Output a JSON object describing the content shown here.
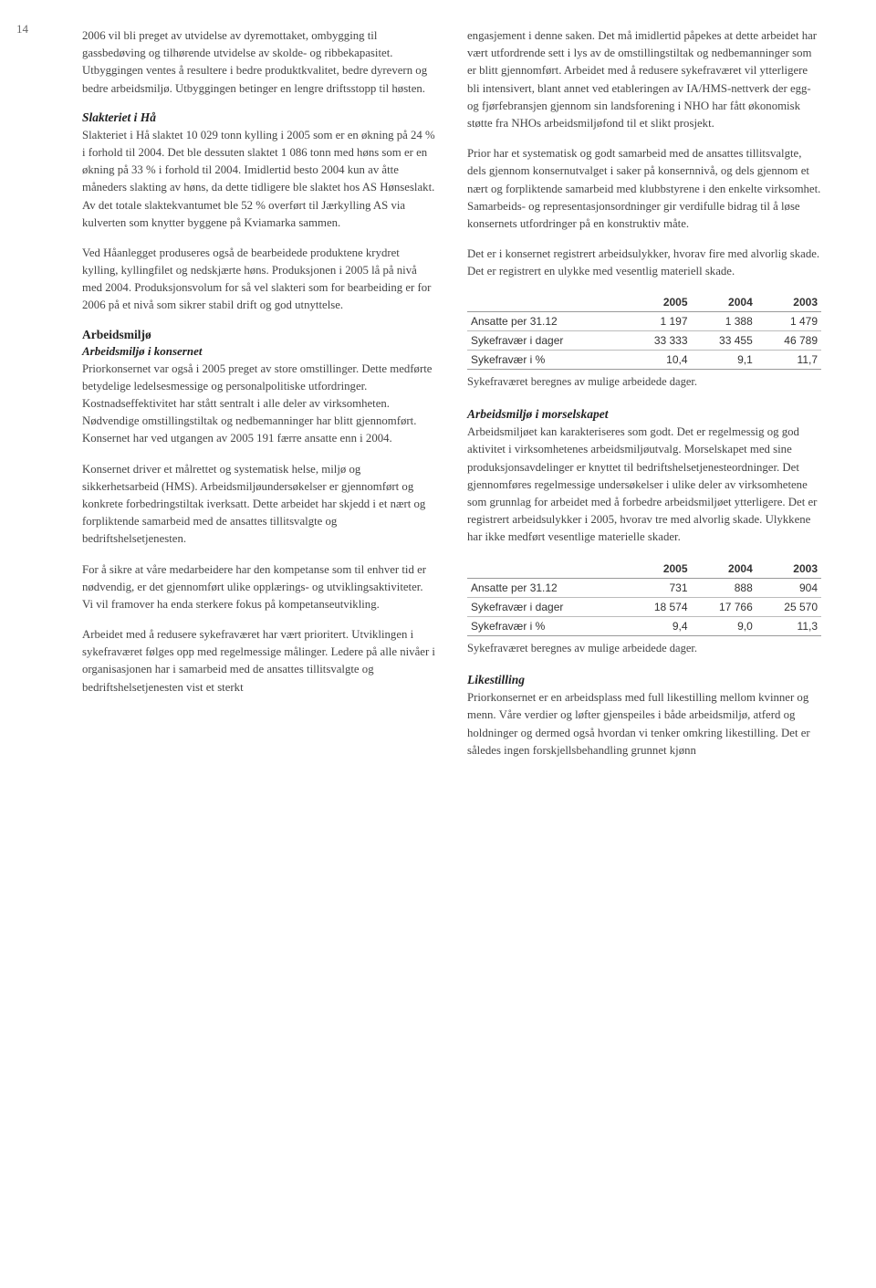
{
  "page_number": "14",
  "colors": {
    "background": "#ffffff",
    "text": "#444444",
    "heading": "#222222",
    "table_border": "#999999",
    "table_border_light": "#bbbbbb"
  },
  "typography": {
    "body_font": "Georgia / serif",
    "body_size_pt": 10,
    "heading_size_pt": 10.5,
    "table_font": "Arial / sans-serif",
    "table_size_pt": 9
  },
  "left": {
    "p1": "2006 vil bli preget av utvidelse av dyremottaket, ombygging til gassbedøving og tilhørende utvidelse av skolde- og ribbekapasitet. Utbyggingen ventes å resultere i bedre produktkvalitet, bedre dyrevern og bedre arbeidsmiljø. Utbyggingen betinger en lengre driftsstopp til høsten.",
    "h1": "Slakteriet i Hå",
    "p2": "Slakteriet i Hå slaktet 10 029 tonn kylling i 2005 som er en økning på 24 % i forhold til 2004. Det ble dessuten slaktet 1 086 tonn med høns som er en økning på 33 % i forhold til 2004. Imidlertid besto 2004 kun av åtte måneders slakting av høns, da dette tidligere ble slaktet hos AS Hønseslakt. Av det totale slaktekvantumet ble 52 % overført til Jærkylling AS via kulverten som knytter byggene på Kviamarka sammen.",
    "p3": "Ved Håanlegget produseres også de bearbeidede produktene krydret kylling, kyllingfilet og nedskjærte høns. Produksjonen i 2005 lå på nivå med 2004. Produksjonsvolum for så vel slakteri som for bearbeiding er for 2006 på et nivå som sikrer stabil drift og god utnyttelse.",
    "h2a": "Arbeidsmiljø",
    "h2b": "Arbeidsmiljø i konsernet",
    "p4": "Priorkonsernet var også i 2005 preget av store omstillinger. Dette medførte betydelige ledelsesmessige og personalpolitiske utfordringer. Kostnadseffektivitet har stått sentralt i alle deler av virksomheten. Nødvendige omstillingstiltak og nedbemanninger har blitt gjennomført. Konsernet har ved utgangen av 2005 191 færre ansatte enn i 2004.",
    "p5": "Konsernet driver et målrettet og systematisk helse, miljø og sikkerhetsarbeid (HMS). Arbeidsmiljøundersøkelser er gjennomført og konkrete forbedringstiltak iverksatt. Dette arbeidet har skjedd i et nært og forpliktende samarbeid med de ansattes tillitsvalgte og bedriftshelsetjenesten.",
    "p6": "For å sikre at våre medarbeidere har den kompetanse som til enhver tid er nødvendig, er det gjennomført ulike opplærings- og utviklingsaktiviteter. Vi vil framover ha enda sterkere fokus på kompetanseutvikling.",
    "p7": "Arbeidet med å redusere sykefraværet har vært prioritert. Utviklingen i sykefraværet følges opp med regelmessige målinger. Ledere på alle nivåer i organisasjonen har i samarbeid med de ansattes tillitsvalgte og bedriftshelsetjenesten vist et sterkt"
  },
  "right": {
    "p1": "engasjement i denne saken. Det må imidlertid påpekes at dette arbeidet har vært utfordrende sett i lys av de omstillingstiltak og nedbemanninger som er blitt gjennomført. Arbeidet med å redusere sykefraværet vil ytterligere bli intensivert, blant annet ved etableringen av IA/HMS-nettverk der egg- og fjørfebransjen gjennom sin landsforening i NHO har fått økonomisk støtte fra NHOs arbeidsmiljøfond til et slikt prosjekt.",
    "p2": "Prior har et systematisk og godt samarbeid med de ansattes tillitsvalgte, dels gjennom konsernutvalget i saker på konsernnivå, og dels gjennom et nært og forpliktende samarbeid med klubbstyrene i den enkelte virksomhet. Samarbeids- og representasjonsordninger gir verdifulle bidrag til å løse konsernets utfordringer på en konstruktiv måte.",
    "p3": "Det er i konsernet registrert arbeidsulykker, hvorav fire med alvorlig skade. Det er registrert en ulykke med vesentlig materiell skade.",
    "table1_note": "Sykefraværet beregnes av mulige arbeidede dager.",
    "h1": "Arbeidsmiljø i morselskapet",
    "p4": "Arbeidsmiljøet kan karakteriseres som godt. Det er regelmessig og god aktivitet i virksomhetenes arbeidsmiljøutvalg. Morselskapet med sine produksjonsavdelinger er knyttet til bedriftshelsetjenesteordninger. Det gjennomføres regelmessige undersøkelser i ulike deler av virksomhetene som grunnlag for arbeidet med å forbedre arbeidsmiljøet ytterligere. Det er registrert arbeidsulykker i 2005, hvorav tre med alvorlig skade. Ulykkene har ikke medført vesentlige materielle skader.",
    "table2_note": "Sykefraværet beregnes av mulige arbeidede dager.",
    "h2": "Likestilling",
    "p5": "Priorkonsernet er en arbeidsplass med full likestilling mellom kvinner og menn. Våre verdier og løfter gjenspeiles i både arbeidsmiljø, atferd og holdninger og dermed også hvordan vi tenker omkring likestilling. Det er således ingen forskjellsbehandling grunnet kjønn"
  },
  "table1": {
    "columns": [
      "",
      "2005",
      "2004",
      "2003"
    ],
    "rows": [
      [
        "Ansatte per 31.12",
        "1 197",
        "1 388",
        "1 479"
      ],
      [
        "Sykefravær i dager",
        "33 333",
        "33 455",
        "46 789"
      ],
      [
        "Sykefravær i %",
        "10,4",
        "9,1",
        "11,7"
      ]
    ]
  },
  "table2": {
    "columns": [
      "",
      "2005",
      "2004",
      "2003"
    ],
    "rows": [
      [
        "Ansatte per 31.12",
        "731",
        "888",
        "904"
      ],
      [
        "Sykefravær i dager",
        "18 574",
        "17 766",
        "25 570"
      ],
      [
        "Sykefravær i %",
        "9,4",
        "9,0",
        "11,3"
      ]
    ]
  }
}
